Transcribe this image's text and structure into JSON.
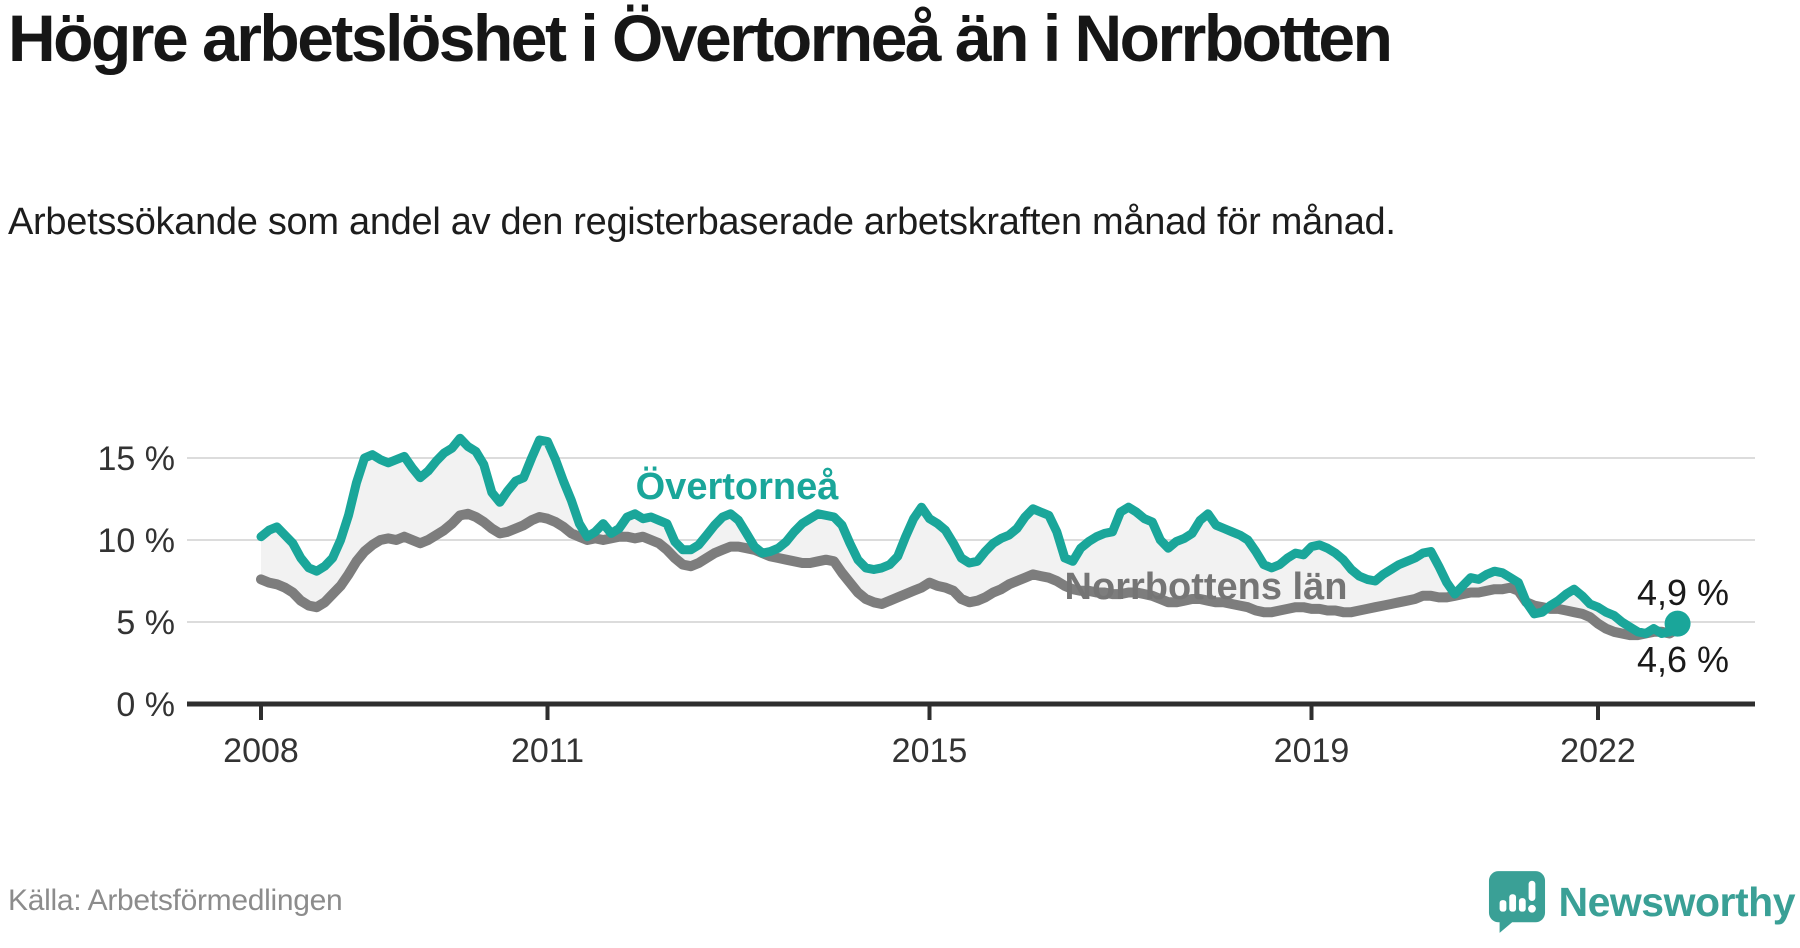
{
  "header": {
    "title": "Högre arbetslöshet i Övertorneå än i Norrbotten",
    "subtitle": "Arbetssökande som andel av den registerbaserade arbetskraften månad för månad."
  },
  "footer": {
    "source": "Källa: Arbetsförmedlingen",
    "brand": "Newsworthy"
  },
  "colors": {
    "overtornea_line": "#1aa69a",
    "norrbotten_line": "#7d7d7d",
    "norrbotten_label": "#757575",
    "band_fill": "#f2f2f2",
    "gridline": "#dcdcdc",
    "axis": "#2e2e2e",
    "end_label_text": "#1a1a1a",
    "logo_teal": "#3aa096"
  },
  "chart_data": {
    "type": "line",
    "x_unit": "month",
    "x_start_year": 2008,
    "x_end": "2022-11",
    "ylim": [
      0,
      17
    ],
    "grid": "horizontal",
    "legend_position": "inline-labels",
    "y_ticks": [
      {
        "value": 15,
        "label": "15 %"
      },
      {
        "value": 10,
        "label": "10 %"
      },
      {
        "value": 5,
        "label": "5 %"
      },
      {
        "value": 0,
        "label": "0 %"
      }
    ],
    "x_ticks": [
      {
        "year": 2008,
        "label": "2008"
      },
      {
        "year": 2011,
        "label": "2011"
      },
      {
        "year": 2015,
        "label": "2015"
      },
      {
        "year": 2019,
        "label": "2019"
      },
      {
        "year": 2022,
        "label": "2022"
      }
    ],
    "end_labels": [
      {
        "series": "Övertorneå",
        "text": "4,9 %"
      },
      {
        "series": "Norrbottens län",
        "text": "4,6 %"
      }
    ],
    "series": [
      {
        "name": "Övertorneå",
        "color": "#1aa69a",
        "values": [
          10.2,
          10.6,
          10.8,
          10.3,
          9.8,
          8.9,
          8.3,
          8.1,
          8.4,
          8.9,
          10.0,
          11.5,
          13.5,
          15.0,
          15.2,
          14.9,
          14.7,
          14.9,
          15.1,
          14.4,
          13.8,
          14.2,
          14.8,
          15.3,
          15.6,
          16.2,
          15.7,
          15.4,
          14.6,
          12.9,
          12.3,
          13.0,
          13.6,
          13.8,
          15.0,
          16.1,
          16.0,
          14.9,
          13.6,
          12.4,
          11.0,
          10.2,
          10.5,
          11.0,
          10.4,
          10.7,
          11.4,
          11.6,
          11.3,
          11.4,
          11.2,
          11.0,
          9.9,
          9.4,
          9.4,
          9.7,
          10.3,
          10.9,
          11.4,
          11.6,
          11.2,
          10.4,
          9.6,
          9.2,
          9.3,
          9.5,
          9.9,
          10.5,
          11.0,
          11.3,
          11.6,
          11.5,
          11.4,
          10.9,
          9.8,
          8.8,
          8.3,
          8.2,
          8.3,
          8.5,
          9.0,
          10.2,
          11.3,
          12.0,
          11.3,
          11.0,
          10.6,
          9.8,
          8.9,
          8.6,
          8.7,
          9.3,
          9.8,
          10.1,
          10.3,
          10.7,
          11.4,
          11.9,
          11.7,
          11.5,
          10.5,
          8.9,
          8.7,
          9.5,
          9.9,
          10.2,
          10.4,
          10.5,
          11.7,
          12.0,
          11.7,
          11.3,
          11.1,
          10.0,
          9.5,
          9.9,
          10.1,
          10.4,
          11.2,
          11.6,
          10.9,
          10.7,
          10.5,
          10.3,
          10.0,
          9.3,
          8.5,
          8.3,
          8.5,
          8.9,
          9.2,
          9.1,
          9.6,
          9.7,
          9.5,
          9.2,
          8.8,
          8.2,
          7.8,
          7.6,
          7.5,
          7.9,
          8.2,
          8.5,
          8.7,
          8.9,
          9.2,
          9.3,
          8.4,
          7.4,
          6.7,
          7.2,
          7.7,
          7.6,
          7.9,
          8.1,
          8.0,
          7.7,
          7.4,
          6.2,
          5.5,
          5.6,
          6.0,
          6.3,
          6.7,
          7.0,
          6.6,
          6.1,
          5.9,
          5.6,
          5.4,
          5.0,
          4.7,
          4.4,
          4.3,
          4.6,
          4.3,
          4.4,
          4.9
        ]
      },
      {
        "name": "Norrbottens län",
        "color": "#7d7d7d",
        "values": [
          7.6,
          7.4,
          7.3,
          7.1,
          6.8,
          6.3,
          6.0,
          5.9,
          6.2,
          6.7,
          7.2,
          7.9,
          8.7,
          9.3,
          9.7,
          10.0,
          10.1,
          10.0,
          10.2,
          10.0,
          9.8,
          10.0,
          10.3,
          10.6,
          11.0,
          11.5,
          11.6,
          11.4,
          11.1,
          10.7,
          10.4,
          10.5,
          10.7,
          10.9,
          11.2,
          11.4,
          11.3,
          11.1,
          10.8,
          10.4,
          10.2,
          10.0,
          10.1,
          10.0,
          10.1,
          10.2,
          10.2,
          10.1,
          10.2,
          10.0,
          9.8,
          9.4,
          8.9,
          8.5,
          8.4,
          8.6,
          8.9,
          9.2,
          9.4,
          9.6,
          9.6,
          9.5,
          9.4,
          9.2,
          9.0,
          8.9,
          8.8,
          8.7,
          8.6,
          8.6,
          8.7,
          8.8,
          8.7,
          8.0,
          7.4,
          6.8,
          6.4,
          6.2,
          6.1,
          6.3,
          6.5,
          6.7,
          6.9,
          7.1,
          7.4,
          7.2,
          7.1,
          6.9,
          6.4,
          6.2,
          6.3,
          6.5,
          6.8,
          7.0,
          7.3,
          7.5,
          7.7,
          7.9,
          7.8,
          7.7,
          7.5,
          7.2,
          7.0,
          6.9,
          6.9,
          6.8,
          6.8,
          6.7,
          6.7,
          6.8,
          6.8,
          6.7,
          6.6,
          6.4,
          6.2,
          6.2,
          6.3,
          6.4,
          6.4,
          6.3,
          6.2,
          6.2,
          6.1,
          6.0,
          5.9,
          5.7,
          5.6,
          5.6,
          5.7,
          5.8,
          5.9,
          5.9,
          5.8,
          5.8,
          5.7,
          5.7,
          5.6,
          5.6,
          5.7,
          5.8,
          5.9,
          6.0,
          6.1,
          6.2,
          6.3,
          6.4,
          6.6,
          6.6,
          6.5,
          6.5,
          6.6,
          6.7,
          6.8,
          6.8,
          6.9,
          7.0,
          7.0,
          7.1,
          6.9,
          6.2,
          6.0,
          5.9,
          5.8,
          5.8,
          5.7,
          5.6,
          5.5,
          5.3,
          4.9,
          4.6,
          4.4,
          4.3,
          4.2,
          4.2,
          4.3,
          4.4,
          4.4,
          4.3,
          4.6
        ]
      }
    ]
  }
}
